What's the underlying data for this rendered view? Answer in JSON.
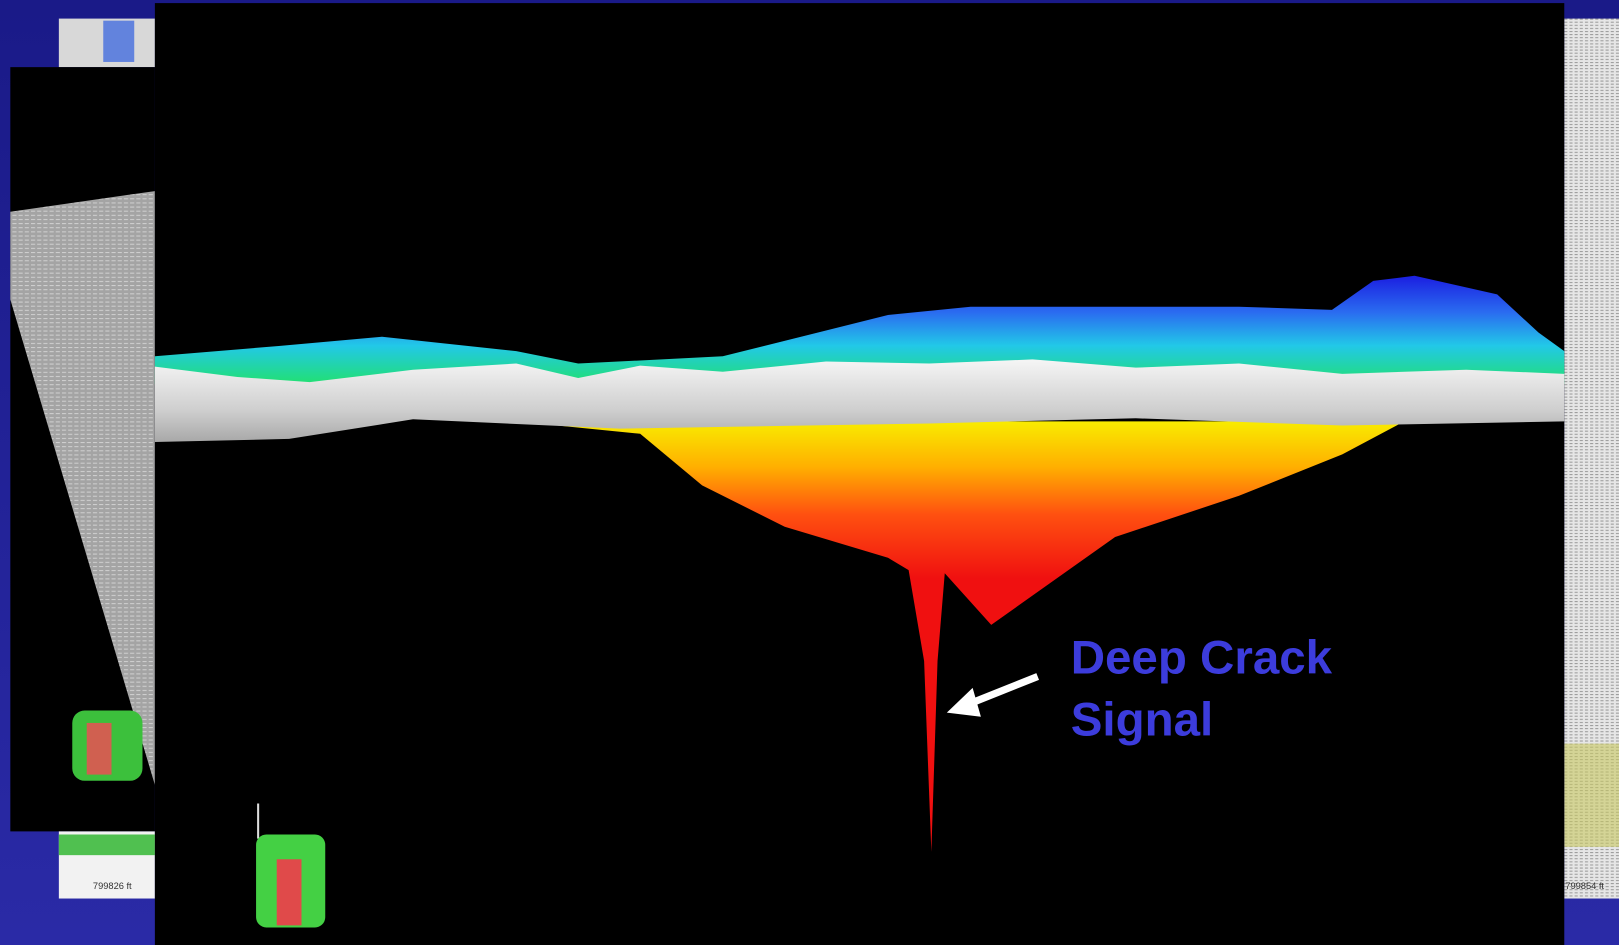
{
  "annotation": {
    "lines": [
      "Deep Crack",
      "Signal"
    ]
  },
  "background_labels": {
    "left": "799826 ft",
    "right": "799854 ft"
  }
}
